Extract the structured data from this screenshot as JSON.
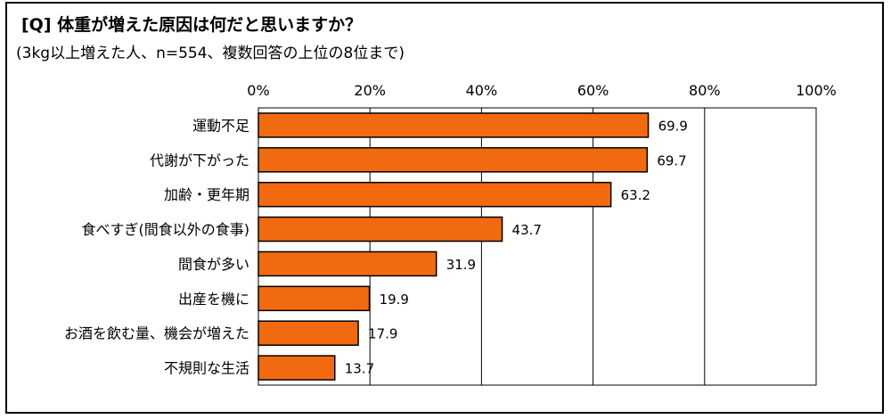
{
  "title": "[Q] 体重が増えた原因は何だと思いますか？",
  "subtitle": "(3kg以上増えた人、n=554、複数回答の上位の8位まで)",
  "chart_data": {
    "type": "bar",
    "orientation": "horizontal",
    "categories": [
      "運動不足",
      "代謝が下がった",
      "加齢・更年期",
      "食べすぎ(間食以外の食事)",
      "間食が多い",
      "出産を機に",
      "お酒を飲む量、機会が増えた",
      "不規則な生活"
    ],
    "values": [
      69.9,
      69.7,
      63.2,
      43.7,
      31.9,
      19.9,
      17.9,
      13.7
    ],
    "xlim": [
      0,
      100
    ],
    "ticks": [
      0,
      20,
      40,
      60,
      80,
      100
    ],
    "tick_labels": [
      "0%",
      "20%",
      "40%",
      "60%",
      "80%",
      "100%"
    ],
    "grid": true,
    "colors": {
      "bar": "#F26A10",
      "bar_stroke": "#000000",
      "grid": "#000000"
    }
  }
}
